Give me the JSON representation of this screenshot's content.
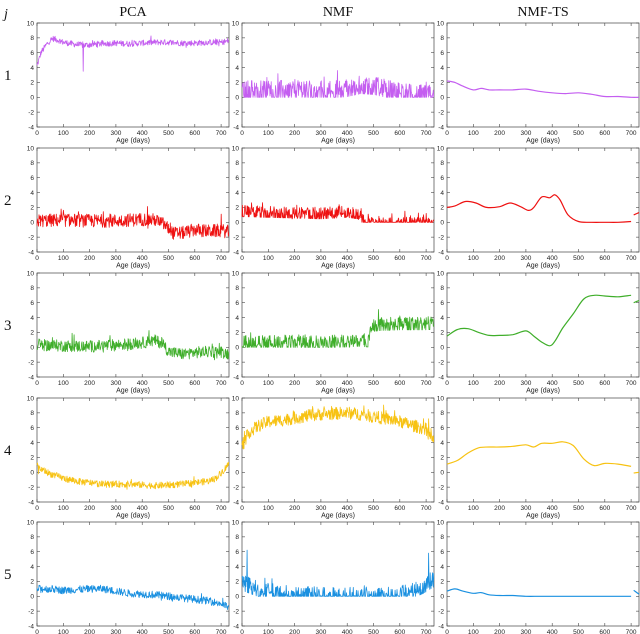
{
  "header": {
    "row_symbol": "j"
  },
  "columns": [
    "PCA",
    "NMF",
    "NMF-TS"
  ],
  "rows": [
    "1",
    "2",
    "3",
    "4",
    "5"
  ],
  "colors": [
    "#c45ef0",
    "#ee1111",
    "#3fae2a",
    "#f7c212",
    "#1a90e0"
  ],
  "chart_data": {
    "type": "line",
    "layout": "grid 5 rows x 3 columns",
    "xlabel": "Age (days)",
    "xlim": [
      0,
      730
    ],
    "ylim": [
      -4,
      10
    ],
    "xticks": [
      0,
      100,
      200,
      300,
      400,
      500,
      600,
      700
    ],
    "yticks": [
      -4,
      -2,
      0,
      2,
      4,
      6,
      8,
      10
    ],
    "panels": [
      {
        "row": "1",
        "column": "PCA",
        "style": "noisy",
        "color": "#c45ef0",
        "x": [
          0,
          15,
          40,
          60,
          80,
          100,
          150,
          180,
          200,
          250,
          300,
          350,
          400,
          450,
          500,
          550,
          600,
          650,
          700,
          730
        ],
        "y": [
          4.2,
          6.0,
          7.3,
          7.9,
          7.7,
          7.4,
          7.1,
          7.0,
          7.1,
          7.2,
          7.3,
          7.2,
          7.3,
          7.4,
          7.4,
          7.3,
          7.3,
          7.4,
          7.4,
          7.6
        ],
        "noise": 0.4,
        "spikes": [
          [
            175,
            3.5
          ]
        ]
      },
      {
        "row": "1",
        "column": "NMF",
        "style": "noisy",
        "color": "#c45ef0",
        "x": [
          0,
          100,
          200,
          300,
          400,
          450,
          500,
          550,
          600,
          650,
          700,
          730
        ],
        "y": [
          1.3,
          1.2,
          1.2,
          1.1,
          1.4,
          1.8,
          1.7,
          1.3,
          0.9,
          0.7,
          0.5,
          0.3
        ],
        "noise": 1.1,
        "floor": 0,
        "ceil": 3.6
      },
      {
        "row": "1",
        "column": "NMF-TS",
        "style": "smooth",
        "color": "#c45ef0",
        "segments": [
          {
            "x": [
              0,
              30,
              60,
              100,
              130,
              160,
              200,
              250,
              300,
              350,
              400,
              450,
              500,
              550,
              600,
              650,
              700,
              730
            ],
            "y": [
              2.2,
              2.0,
              1.5,
              1.0,
              1.2,
              1.0,
              1.0,
              1.0,
              1.1,
              0.8,
              0.6,
              0.5,
              0.6,
              0.4,
              0.1,
              0.1,
              0.0,
              0.0
            ]
          }
        ]
      },
      {
        "row": "2",
        "column": "PCA",
        "style": "noisy",
        "color": "#ee1111",
        "x": [
          0,
          100,
          200,
          300,
          400,
          450,
          480,
          520,
          560,
          600,
          650,
          700,
          730
        ],
        "y": [
          0.2,
          0.3,
          0.2,
          0.2,
          0.4,
          0.3,
          -0.2,
          -1.5,
          -1.4,
          -1.0,
          -1.2,
          -1.1,
          -1.3
        ],
        "noise": 0.9
      },
      {
        "row": "2",
        "column": "NMF",
        "style": "noisy",
        "color": "#ee1111",
        "x": [
          0,
          100,
          200,
          300,
          400,
          440,
          470,
          500,
          600,
          700,
          730
        ],
        "y": [
          1.6,
          1.5,
          1.4,
          1.3,
          1.5,
          1.3,
          0.1,
          0.0,
          0.0,
          0.0,
          0.3
        ],
        "noise": 0.7,
        "floor": 0,
        "spikes": [
          [
            480,
            1.1
          ],
          [
            520,
            0.8
          ],
          [
            620,
            1.5
          ],
          [
            640,
            0.9
          ],
          [
            700,
            1.2
          ]
        ]
      },
      {
        "row": "2",
        "column": "NMF-TS",
        "style": "smooth",
        "color": "#ee1111",
        "segments": [
          {
            "x": [
              0,
              30,
              70,
              110,
              150,
              200,
              240,
              280,
              310,
              330,
              360,
              390,
              410,
              430,
              460,
              500,
              550,
              600,
              650,
              700
            ],
            "y": [
              2.0,
              2.2,
              2.8,
              2.6,
              2.0,
              2.1,
              2.6,
              2.1,
              1.6,
              2.0,
              3.4,
              3.3,
              3.7,
              3.0,
              1.0,
              0.1,
              0.0,
              0.0,
              0.0,
              0.1
            ]
          },
          {
            "x": [
              710,
              730
            ],
            "y": [
              1.0,
              1.3
            ]
          }
        ]
      },
      {
        "row": "3",
        "column": "PCA",
        "style": "noisy",
        "color": "#3fae2a",
        "x": [
          0,
          100,
          200,
          300,
          400,
          450,
          480,
          500,
          550,
          600,
          650,
          700,
          730
        ],
        "y": [
          0.3,
          0.2,
          0.1,
          0.3,
          0.6,
          0.9,
          0.5,
          -0.6,
          -0.9,
          -0.7,
          -0.6,
          -0.6,
          -0.9
        ],
        "noise": 0.8
      },
      {
        "row": "3",
        "column": "NMF",
        "style": "noisy",
        "color": "#3fae2a",
        "x": [
          0,
          100,
          200,
          300,
          400,
          450,
          480,
          490,
          520,
          600,
          700,
          730
        ],
        "y": [
          0.8,
          0.8,
          0.9,
          0.9,
          1.0,
          1.1,
          1.0,
          3.0,
          3.2,
          3.3,
          3.3,
          3.4
        ],
        "noise": 0.8,
        "floor": 0
      },
      {
        "row": "3",
        "column": "NMF-TS",
        "style": "smooth",
        "color": "#3fae2a",
        "segments": [
          {
            "x": [
              0,
              40,
              80,
              120,
              160,
              200,
              250,
              300,
              330,
              360,
              390,
              410,
              440,
              480,
              520,
              560,
              600,
              650,
              700
            ],
            "y": [
              1.5,
              2.4,
              2.5,
              2.0,
              1.6,
              1.6,
              1.7,
              2.2,
              1.5,
              0.7,
              0.2,
              0.8,
              2.6,
              4.5,
              6.5,
              7.0,
              6.9,
              6.8,
              7.0
            ]
          },
          {
            "x": [
              710,
              730
            ],
            "y": [
              6.0,
              6.3
            ]
          }
        ]
      },
      {
        "row": "4",
        "column": "PCA",
        "style": "noisy",
        "color": "#f7c212",
        "x": [
          0,
          50,
          100,
          150,
          200,
          250,
          300,
          350,
          400,
          450,
          500,
          550,
          600,
          650,
          680,
          710,
          730
        ],
        "y": [
          0.7,
          -0.2,
          -0.8,
          -1.2,
          -1.4,
          -1.6,
          -1.6,
          -1.6,
          -1.7,
          -1.8,
          -1.7,
          -1.6,
          -1.4,
          -1.2,
          -0.8,
          0.3,
          1.2
        ],
        "noise": 0.45
      },
      {
        "row": "4",
        "column": "NMF",
        "style": "noisy",
        "color": "#f7c212",
        "x": [
          0,
          30,
          60,
          100,
          150,
          200,
          250,
          300,
          350,
          400,
          450,
          500,
          550,
          600,
          650,
          700,
          730
        ],
        "y": [
          3.5,
          5.5,
          6.2,
          6.8,
          7.0,
          7.3,
          7.6,
          7.8,
          7.9,
          8.0,
          7.8,
          7.5,
          7.2,
          6.8,
          6.3,
          5.8,
          4.0
        ],
        "noise": 0.85
      },
      {
        "row": "4",
        "column": "NMF-TS",
        "style": "smooth",
        "color": "#f7c212",
        "segments": [
          {
            "x": [
              0,
              40,
              80,
              120,
              160,
              200,
              250,
              300,
              330,
              360,
              400,
              440,
              480,
              520,
              560,
              600,
              650,
              700
            ],
            "y": [
              1.1,
              1.6,
              2.6,
              3.3,
              3.4,
              3.4,
              3.5,
              3.7,
              3.4,
              3.9,
              3.9,
              4.1,
              3.6,
              1.8,
              0.9,
              1.2,
              1.1,
              0.8
            ]
          },
          {
            "x": [
              710,
              730
            ],
            "y": [
              -0.1,
              0.0
            ]
          }
        ]
      },
      {
        "row": "5",
        "column": "PCA",
        "style": "noisy",
        "color": "#1a90e0",
        "x": [
          0,
          50,
          100,
          150,
          200,
          250,
          300,
          350,
          400,
          450,
          500,
          550,
          600,
          650,
          700,
          730
        ],
        "y": [
          1.0,
          1.0,
          0.8,
          0.9,
          1.0,
          1.0,
          0.7,
          0.4,
          0.3,
          0.2,
          0.0,
          -0.2,
          -0.4,
          -0.6,
          -1.0,
          -1.5
        ],
        "noise": 0.5
      },
      {
        "row": "5",
        "column": "NMF",
        "style": "noisy",
        "color": "#1a90e0",
        "x": [
          0,
          50,
          100,
          150,
          200,
          300,
          400,
          500,
          600,
          650,
          700,
          730
        ],
        "y": [
          2.0,
          1.3,
          0.9,
          0.6,
          0.4,
          0.3,
          0.3,
          0.3,
          0.5,
          0.9,
          1.8,
          2.5
        ],
        "noise": 1.0,
        "floor": 0,
        "spikes": [
          [
            20,
            6.2
          ],
          [
            710,
            5.8
          ]
        ]
      },
      {
        "row": "5",
        "column": "NMF-TS",
        "style": "smooth",
        "color": "#1a90e0",
        "segments": [
          {
            "x": [
              0,
              30,
              60,
              100,
              130,
              160,
              200,
              250,
              300,
              350,
              400,
              450,
              500,
              550,
              600,
              650,
              700
            ],
            "y": [
              0.7,
              1.0,
              0.7,
              0.4,
              0.5,
              0.2,
              0.1,
              0.1,
              0.0,
              0.0,
              0.0,
              0.0,
              0.0,
              0.0,
              0.0,
              0.0,
              0.0
            ]
          },
          {
            "x": [
              710,
              730
            ],
            "y": [
              0.8,
              0.3
            ]
          }
        ]
      }
    ]
  }
}
